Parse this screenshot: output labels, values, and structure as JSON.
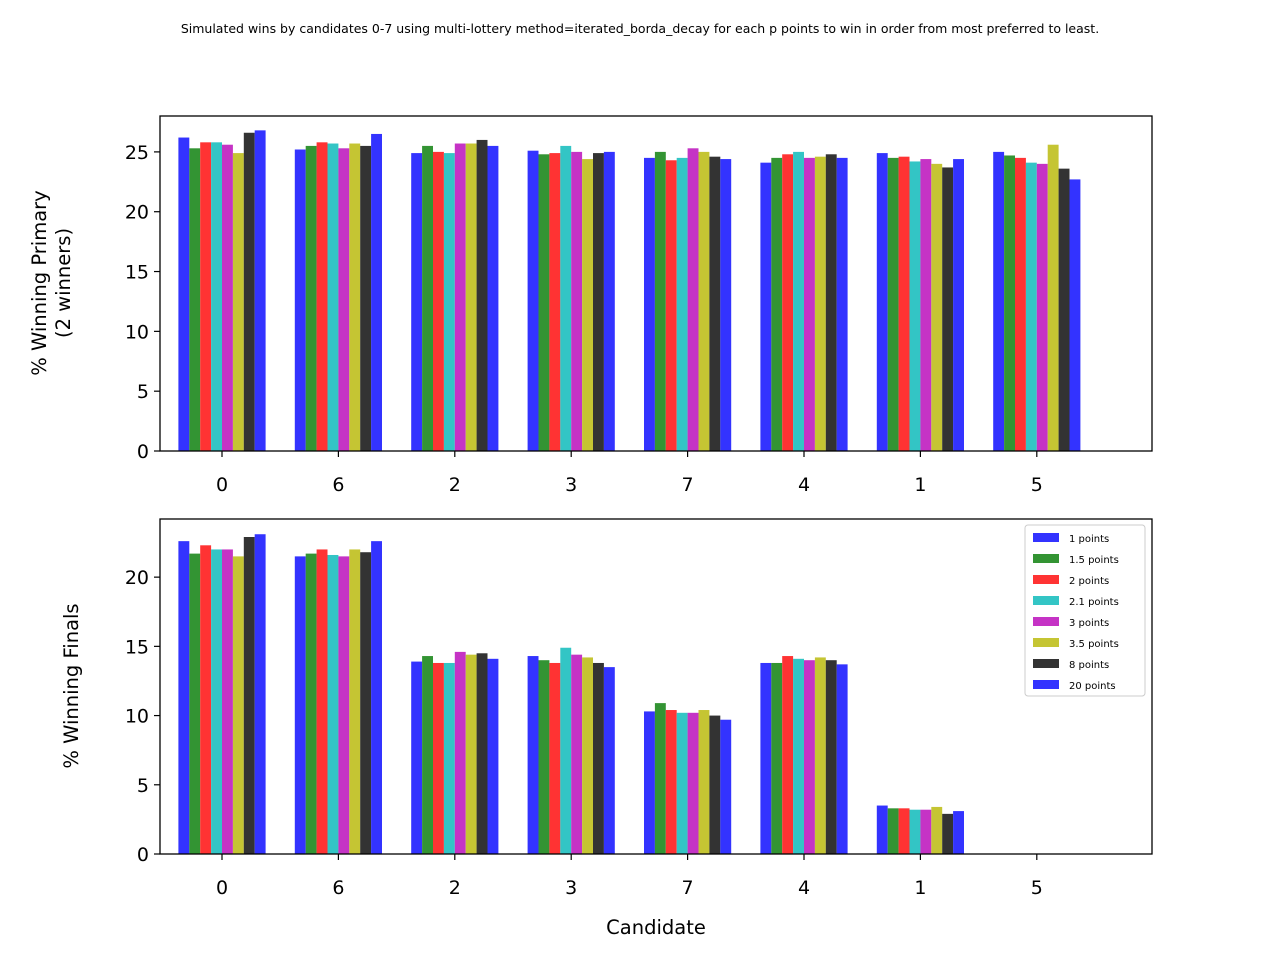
{
  "figure": {
    "title": "Simulated wins by candidates 0-7 using multi-lottery method=iterated_borda_decay for each p points to win in order from most preferred to least."
  },
  "series_colors": [
    "#2222ff",
    "#228b22",
    "#ff2222",
    "#22c0c0",
    "#c022c0",
    "#c0c022",
    "#222222",
    "#2222ff"
  ],
  "chart_data": [
    {
      "type": "bar",
      "ylabel": "% Winning Primary\n(2 winners)",
      "xlabel": "",
      "categories": [
        "0",
        "6",
        "2",
        "3",
        "7",
        "4",
        "1",
        "5"
      ],
      "ylim": [
        0,
        28
      ],
      "yticks": [
        0,
        5,
        10,
        15,
        20,
        25
      ],
      "legend": false,
      "series": [
        {
          "name": "1 points",
          "values": [
            26.2,
            25.2,
            24.9,
            25.1,
            24.5,
            24.1,
            24.9,
            25.0
          ]
        },
        {
          "name": "1.5 points",
          "values": [
            25.3,
            25.5,
            25.5,
            24.8,
            25.0,
            24.5,
            24.5,
            24.7
          ]
        },
        {
          "name": "2 points",
          "values": [
            25.8,
            25.8,
            25.0,
            24.9,
            24.3,
            24.8,
            24.6,
            24.5
          ]
        },
        {
          "name": "2.1 points",
          "values": [
            25.8,
            25.7,
            24.9,
            25.5,
            24.5,
            25.0,
            24.2,
            24.1
          ]
        },
        {
          "name": "3 points",
          "values": [
            25.6,
            25.3,
            25.7,
            25.0,
            25.3,
            24.5,
            24.4,
            24.0
          ]
        },
        {
          "name": "3.5 points",
          "values": [
            24.9,
            25.7,
            25.7,
            24.4,
            25.0,
            24.6,
            24.0,
            25.6
          ]
        },
        {
          "name": "8 points",
          "values": [
            26.6,
            25.5,
            26.0,
            24.9,
            24.6,
            24.8,
            23.7,
            23.6
          ]
        },
        {
          "name": "20 points",
          "values": [
            26.8,
            26.5,
            25.5,
            25.0,
            24.4,
            24.5,
            24.4,
            22.7
          ]
        }
      ]
    },
    {
      "type": "bar",
      "ylabel": "% Winning Finals",
      "xlabel": "Candidate",
      "categories": [
        "0",
        "6",
        "2",
        "3",
        "7",
        "4",
        "1",
        "5"
      ],
      "ylim": [
        0,
        24.2
      ],
      "yticks": [
        0,
        5,
        10,
        15,
        20
      ],
      "legend": true,
      "legend_position": "top-right",
      "series": [
        {
          "name": "1 points",
          "values": [
            22.6,
            21.5,
            13.9,
            14.3,
            10.3,
            13.8,
            3.5,
            0
          ]
        },
        {
          "name": "1.5 points",
          "values": [
            21.7,
            21.7,
            14.3,
            14.0,
            10.9,
            13.8,
            3.3,
            0
          ]
        },
        {
          "name": "2 points",
          "values": [
            22.3,
            22.0,
            13.8,
            13.8,
            10.4,
            14.3,
            3.3,
            0
          ]
        },
        {
          "name": "2.1 points",
          "values": [
            22.0,
            21.6,
            13.8,
            14.9,
            10.2,
            14.1,
            3.2,
            0
          ]
        },
        {
          "name": "3 points",
          "values": [
            22.0,
            21.5,
            14.6,
            14.4,
            10.2,
            14.0,
            3.2,
            0
          ]
        },
        {
          "name": "3.5 points",
          "values": [
            21.5,
            22.0,
            14.4,
            14.2,
            10.4,
            14.2,
            3.4,
            0
          ]
        },
        {
          "name": "8 points",
          "values": [
            22.9,
            21.8,
            14.5,
            13.8,
            10.0,
            14.0,
            2.9,
            0
          ]
        },
        {
          "name": "20 points",
          "values": [
            23.1,
            22.6,
            14.1,
            13.5,
            9.7,
            13.7,
            3.1,
            0
          ]
        }
      ]
    }
  ]
}
